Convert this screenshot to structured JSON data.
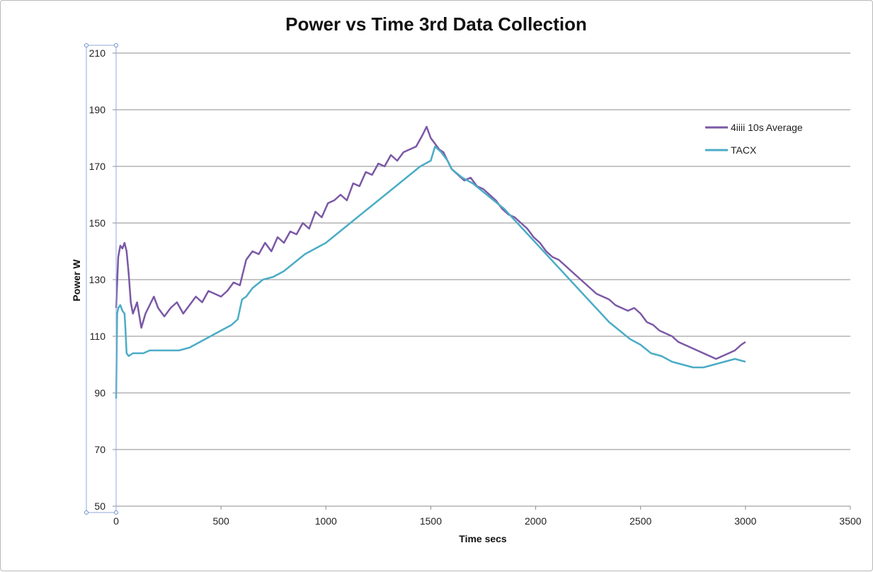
{
  "chart_data": {
    "type": "line",
    "title": "Power vs Time 3rd Data Collection",
    "xlabel": "Time secs",
    "ylabel": "Power W",
    "xlim": [
      0,
      3500
    ],
    "ylim": [
      50,
      210
    ],
    "xticks": [
      0,
      500,
      1000,
      1500,
      2000,
      2500,
      3000,
      3500
    ],
    "yticks": [
      50,
      70,
      90,
      110,
      130,
      150,
      170,
      190,
      210
    ],
    "grid": "horizontal",
    "legend_position": "right",
    "series": [
      {
        "name": "4iiii 10s Average",
        "color": "#7b58a6",
        "x": [
          0,
          10,
          20,
          30,
          40,
          50,
          60,
          70,
          80,
          90,
          100,
          120,
          140,
          160,
          180,
          200,
          230,
          260,
          290,
          320,
          350,
          380,
          410,
          440,
          470,
          500,
          530,
          560,
          590,
          620,
          650,
          680,
          710,
          740,
          770,
          800,
          830,
          860,
          890,
          920,
          950,
          980,
          1010,
          1040,
          1070,
          1100,
          1130,
          1160,
          1190,
          1220,
          1250,
          1280,
          1310,
          1340,
          1370,
          1400,
          1430,
          1460,
          1480,
          1500,
          1520,
          1540,
          1560,
          1580,
          1600,
          1630,
          1660,
          1690,
          1720,
          1750,
          1780,
          1810,
          1840,
          1870,
          1900,
          1930,
          1960,
          1990,
          2020,
          2050,
          2080,
          2110,
          2140,
          2170,
          2200,
          2230,
          2260,
          2290,
          2320,
          2350,
          2380,
          2410,
          2440,
          2470,
          2500,
          2530,
          2560,
          2590,
          2620,
          2650,
          2680,
          2710,
          2740,
          2770,
          2800,
          2830,
          2860,
          2890,
          2920,
          2950,
          2980,
          3000
        ],
        "y": [
          120,
          138,
          142,
          141,
          143,
          140,
          132,
          122,
          118,
          120,
          122,
          113,
          118,
          121,
          124,
          120,
          117,
          120,
          122,
          118,
          121,
          124,
          122,
          126,
          125,
          124,
          126,
          129,
          128,
          137,
          140,
          139,
          143,
          140,
          145,
          143,
          147,
          146,
          150,
          148,
          154,
          152,
          157,
          158,
          160,
          158,
          164,
          163,
          168,
          167,
          171,
          170,
          174,
          172,
          175,
          176,
          177,
          181,
          184,
          180,
          178,
          176,
          175,
          172,
          169,
          167,
          165,
          166,
          163,
          162,
          160,
          158,
          155,
          153,
          152,
          150,
          148,
          145,
          143,
          140,
          138,
          137,
          135,
          133,
          131,
          129,
          127,
          125,
          124,
          123,
          121,
          120,
          119,
          120,
          118,
          115,
          114,
          112,
          111,
          110,
          108,
          107,
          106,
          105,
          104,
          103,
          102,
          103,
          104,
          105,
          107,
          108
        ],
        "note": ""
      },
      {
        "name": "TACX",
        "color": "#4bacc6",
        "x": [
          0,
          5,
          10,
          20,
          30,
          40,
          45,
          50,
          60,
          80,
          100,
          130,
          160,
          200,
          250,
          300,
          350,
          400,
          450,
          500,
          550,
          580,
          600,
          620,
          650,
          700,
          750,
          800,
          850,
          900,
          950,
          1000,
          1050,
          1100,
          1150,
          1200,
          1250,
          1300,
          1350,
          1400,
          1450,
          1500,
          1520,
          1550,
          1580,
          1600,
          1650,
          1700,
          1750,
          1800,
          1850,
          1900,
          1950,
          2000,
          2050,
          2100,
          2150,
          2200,
          2250,
          2300,
          2350,
          2400,
          2450,
          2500,
          2550,
          2600,
          2650,
          2700,
          2750,
          2800,
          2850,
          2900,
          2950,
          3000
        ],
        "y": [
          88,
          118,
          120,
          121,
          119,
          118,
          112,
          104,
          103,
          104,
          104,
          104,
          105,
          105,
          105,
          105,
          106,
          108,
          110,
          112,
          114,
          116,
          123,
          124,
          127,
          130,
          131,
          133,
          136,
          139,
          141,
          143,
          146,
          149,
          152,
          155,
          158,
          161,
          164,
          167,
          170,
          172,
          177,
          175,
          172,
          169,
          166,
          164,
          161,
          158,
          155,
          151,
          147,
          143,
          139,
          135,
          131,
          127,
          123,
          119,
          115,
          112,
          109,
          107,
          104,
          103,
          101,
          100,
          99,
          99,
          100,
          101,
          102,
          101
        ]
      }
    ]
  }
}
